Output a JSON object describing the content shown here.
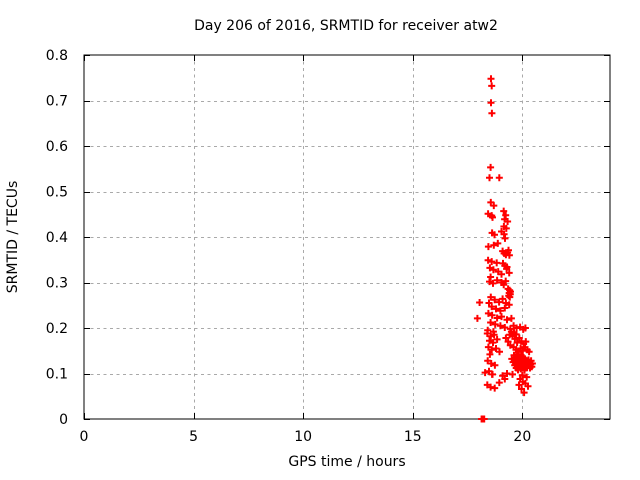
{
  "window": {
    "background": "#ffffff"
  },
  "chart_data": {
    "type": "scatter",
    "title": "Day 206 of 2016, SRMTID for receiver atw2",
    "xlabel": "GPS time / hours",
    "ylabel": "SRMTID / TECUs",
    "xlim": [
      0,
      24
    ],
    "ylim": [
      0,
      0.8
    ],
    "xticks": {
      "values": [
        0,
        5,
        10,
        15,
        20
      ],
      "labels": [
        "0",
        "5",
        "10",
        "15",
        "20"
      ]
    },
    "yticks": {
      "values": [
        0,
        0.1,
        0.2,
        0.3,
        0.4,
        0.5,
        0.6,
        0.7,
        0.8
      ],
      "labels": [
        "0",
        "0.1",
        "0.2",
        "0.3",
        "0.4",
        "0.5",
        "0.6",
        "0.7",
        "0.8"
      ]
    },
    "grid": true,
    "grid_color": "#a9a9a9",
    "border_color": "#000000",
    "marker": "plus",
    "marker_color": "#ff0000",
    "legend": "none",
    "series_name": "SRMTID",
    "points": [
      [
        18.14,
        0.0
      ],
      [
        18.17,
        0.0
      ],
      [
        18.2,
        0.0
      ],
      [
        18.23,
        0.0
      ],
      [
        18.26,
        0.0
      ],
      [
        18.57,
        0.748
      ],
      [
        18.6,
        0.732
      ],
      [
        18.57,
        0.695
      ],
      [
        18.61,
        0.672
      ],
      [
        18.55,
        0.553
      ],
      [
        18.5,
        0.53
      ],
      [
        18.95,
        0.53
      ],
      [
        18.56,
        0.476
      ],
      [
        18.7,
        0.469
      ],
      [
        18.44,
        0.451
      ],
      [
        18.6,
        0.447
      ],
      [
        18.64,
        0.443
      ],
      [
        19.15,
        0.457
      ],
      [
        19.24,
        0.448
      ],
      [
        19.19,
        0.439
      ],
      [
        19.33,
        0.434
      ],
      [
        19.16,
        0.423
      ],
      [
        19.27,
        0.419
      ],
      [
        18.62,
        0.409
      ],
      [
        18.73,
        0.405
      ],
      [
        19.17,
        0.406
      ],
      [
        19.21,
        0.397
      ],
      [
        19.05,
        0.412
      ],
      [
        18.45,
        0.379
      ],
      [
        18.7,
        0.382
      ],
      [
        18.88,
        0.386
      ],
      [
        19.1,
        0.369
      ],
      [
        19.17,
        0.364
      ],
      [
        19.25,
        0.361
      ],
      [
        19.33,
        0.366
      ],
      [
        19.41,
        0.36
      ],
      [
        19.37,
        0.371
      ],
      [
        18.44,
        0.349
      ],
      [
        18.6,
        0.346
      ],
      [
        18.83,
        0.343
      ],
      [
        19.12,
        0.342
      ],
      [
        19.2,
        0.337
      ],
      [
        19.3,
        0.334
      ],
      [
        18.52,
        0.332
      ],
      [
        18.68,
        0.328
      ],
      [
        18.9,
        0.324
      ],
      [
        19.28,
        0.33
      ],
      [
        19.4,
        0.321
      ],
      [
        19.05,
        0.318
      ],
      [
        18.55,
        0.312
      ],
      [
        18.5,
        0.302
      ],
      [
        18.66,
        0.298
      ],
      [
        18.85,
        0.305
      ],
      [
        19.05,
        0.3
      ],
      [
        19.24,
        0.303
      ],
      [
        19.15,
        0.295
      ],
      [
        19.35,
        0.286
      ],
      [
        19.42,
        0.283
      ],
      [
        19.46,
        0.28
      ],
      [
        19.4,
        0.277
      ],
      [
        19.45,
        0.274
      ],
      [
        19.38,
        0.271
      ],
      [
        19.43,
        0.268
      ],
      [
        18.56,
        0.268
      ],
      [
        18.74,
        0.262
      ],
      [
        18.94,
        0.257
      ],
      [
        19.1,
        0.264
      ],
      [
        19.25,
        0.255
      ],
      [
        19.4,
        0.251
      ],
      [
        18.6,
        0.247
      ],
      [
        18.8,
        0.242
      ],
      [
        19.0,
        0.238
      ],
      [
        19.2,
        0.244
      ],
      [
        18.48,
        0.255
      ],
      [
        18.05,
        0.256
      ],
      [
        18.45,
        0.232
      ],
      [
        18.62,
        0.228
      ],
      [
        18.85,
        0.222
      ],
      [
        19.05,
        0.225
      ],
      [
        19.3,
        0.218
      ],
      [
        19.5,
        0.221
      ],
      [
        18.55,
        0.212
      ],
      [
        18.76,
        0.208
      ],
      [
        19.0,
        0.205
      ],
      [
        19.2,
        0.201
      ],
      [
        19.45,
        0.198
      ],
      [
        19.6,
        0.205
      ],
      [
        19.74,
        0.2
      ],
      [
        19.9,
        0.202
      ],
      [
        20.04,
        0.197
      ],
      [
        20.14,
        0.2
      ],
      [
        18.42,
        0.195
      ],
      [
        18.68,
        0.192
      ],
      [
        17.95,
        0.221
      ],
      [
        18.4,
        0.188
      ],
      [
        18.56,
        0.182
      ],
      [
        18.71,
        0.185
      ],
      [
        18.5,
        0.172
      ],
      [
        18.66,
        0.168
      ],
      [
        18.85,
        0.175
      ],
      [
        18.45,
        0.158
      ],
      [
        18.6,
        0.152
      ],
      [
        18.8,
        0.155
      ],
      [
        18.96,
        0.148
      ],
      [
        19.55,
        0.182
      ],
      [
        19.66,
        0.176
      ],
      [
        19.76,
        0.168
      ],
      [
        19.86,
        0.178
      ],
      [
        19.96,
        0.171
      ],
      [
        20.06,
        0.165
      ],
      [
        20.16,
        0.17
      ],
      [
        19.6,
        0.158
      ],
      [
        19.71,
        0.152
      ],
      [
        19.82,
        0.148
      ],
      [
        19.92,
        0.155
      ],
      [
        20.02,
        0.15
      ],
      [
        20.12,
        0.158
      ],
      [
        20.22,
        0.152
      ],
      [
        20.31,
        0.148
      ],
      [
        19.45,
        0.162
      ],
      [
        19.35,
        0.17
      ],
      [
        19.25,
        0.178
      ],
      [
        19.42,
        0.185
      ],
      [
        19.5,
        0.192
      ],
      [
        19.62,
        0.19
      ],
      [
        19.72,
        0.186
      ],
      [
        19.52,
        0.132
      ],
      [
        19.58,
        0.125
      ],
      [
        19.62,
        0.14
      ],
      [
        19.65,
        0.118
      ],
      [
        19.68,
        0.13
      ],
      [
        19.7,
        0.122
      ],
      [
        19.71,
        0.135
      ],
      [
        19.72,
        0.112
      ],
      [
        19.75,
        0.128
      ],
      [
        19.76,
        0.142
      ],
      [
        19.78,
        0.118
      ],
      [
        19.8,
        0.132
      ],
      [
        19.8,
        0.108
      ],
      [
        19.82,
        0.125
      ],
      [
        19.84,
        0.138
      ],
      [
        19.85,
        0.115
      ],
      [
        19.88,
        0.128
      ],
      [
        19.9,
        0.12
      ],
      [
        19.9,
        0.135
      ],
      [
        19.92,
        0.11
      ],
      [
        19.94,
        0.125
      ],
      [
        19.95,
        0.14
      ],
      [
        19.98,
        0.118
      ],
      [
        20.0,
        0.13
      ],
      [
        20.0,
        0.112
      ],
      [
        20.02,
        0.122
      ],
      [
        20.04,
        0.135
      ],
      [
        20.05,
        0.115
      ],
      [
        20.08,
        0.128
      ],
      [
        20.1,
        0.12
      ],
      [
        20.1,
        0.107
      ],
      [
        20.12,
        0.132
      ],
      [
        20.14,
        0.125
      ],
      [
        20.15,
        0.112
      ],
      [
        20.18,
        0.118
      ],
      [
        20.2,
        0.128
      ],
      [
        20.22,
        0.115
      ],
      [
        20.25,
        0.122
      ],
      [
        20.28,
        0.13
      ],
      [
        20.3,
        0.118
      ],
      [
        20.32,
        0.125
      ],
      [
        20.35,
        0.112
      ],
      [
        20.38,
        0.12
      ],
      [
        20.4,
        0.128
      ],
      [
        20.43,
        0.115
      ],
      [
        20.46,
        0.122
      ],
      [
        19.86,
        0.122
      ],
      [
        19.96,
        0.132
      ],
      [
        20.06,
        0.125
      ],
      [
        19.76,
        0.135
      ],
      [
        18.3,
        0.102
      ],
      [
        18.62,
        0.098
      ],
      [
        19.3,
        0.1
      ],
      [
        19.55,
        0.098
      ],
      [
        20.0,
        0.096
      ],
      [
        18.42,
        0.128
      ],
      [
        18.58,
        0.122
      ],
      [
        18.75,
        0.118
      ],
      [
        18.48,
        0.105
      ],
      [
        18.64,
        0.098
      ],
      [
        18.52,
        0.142
      ],
      [
        18.4,
        0.075
      ],
      [
        18.55,
        0.07
      ],
      [
        18.74,
        0.068
      ],
      [
        18.95,
        0.08
      ],
      [
        19.1,
        0.095
      ],
      [
        19.2,
        0.088
      ],
      [
        19.9,
        0.088
      ],
      [
        20.02,
        0.082
      ],
      [
        20.14,
        0.078
      ],
      [
        20.26,
        0.072
      ],
      [
        19.96,
        0.066
      ],
      [
        20.08,
        0.058
      ],
      [
        19.85,
        0.075
      ],
      [
        20.2,
        0.092
      ]
    ]
  }
}
